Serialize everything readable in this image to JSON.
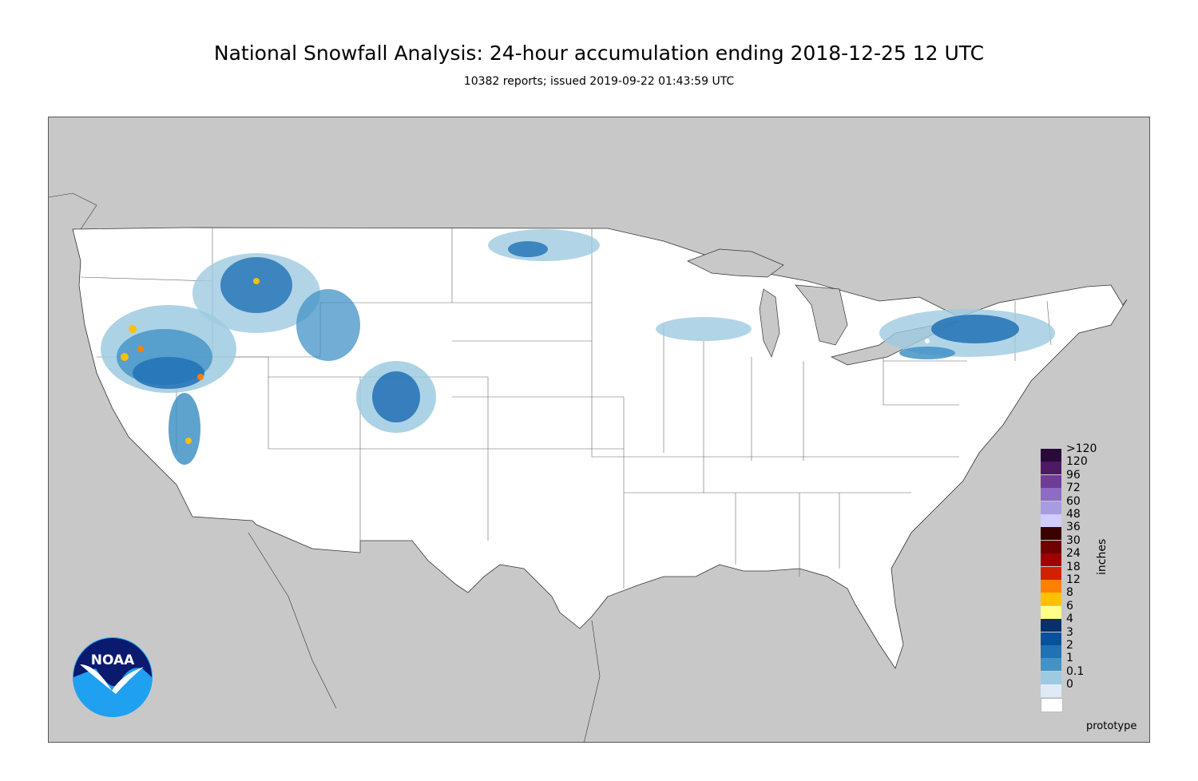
{
  "header": {
    "title": "National Snowfall Analysis: 24-hour accumulation ending 2018-12-25 12 UTC",
    "subtitle": "10382 reports; issued 2019-09-22 01:43:59 UTC"
  },
  "legend": {
    "units": "inches",
    "bins": [
      {
        "label": ">120",
        "color": "#2a0a3a"
      },
      {
        "label": "120",
        "color": "#4d1a66"
      },
      {
        "label": "96",
        "color": "#6f3c98"
      },
      {
        "label": "72",
        "color": "#8c6cc4"
      },
      {
        "label": "60",
        "color": "#a99be0"
      },
      {
        "label": "48",
        "color": "#d0ccff"
      },
      {
        "label": "36",
        "color": "#3a0000"
      },
      {
        "label": "30",
        "color": "#700000"
      },
      {
        "label": "24",
        "color": "#a00000"
      },
      {
        "label": "18",
        "color": "#d42000"
      },
      {
        "label": "12",
        "color": "#ff8000"
      },
      {
        "label": "8",
        "color": "#ffc000"
      },
      {
        "label": "6",
        "color": "#ffff88"
      },
      {
        "label": "4",
        "color": "#08306b"
      },
      {
        "label": "3",
        "color": "#08519c"
      },
      {
        "label": "2",
        "color": "#2171b5"
      },
      {
        "label": "1",
        "color": "#4292c6"
      },
      {
        "label": "0.1",
        "color": "#9ecae1"
      },
      {
        "label": "0",
        "color": "#deebf7"
      },
      {
        "label": "",
        "color": "#ffffff"
      }
    ]
  },
  "footer": {
    "prototype_label": "prototype"
  },
  "logo": {
    "text": "NOAA",
    "icon": "noaa-logo-icon"
  }
}
